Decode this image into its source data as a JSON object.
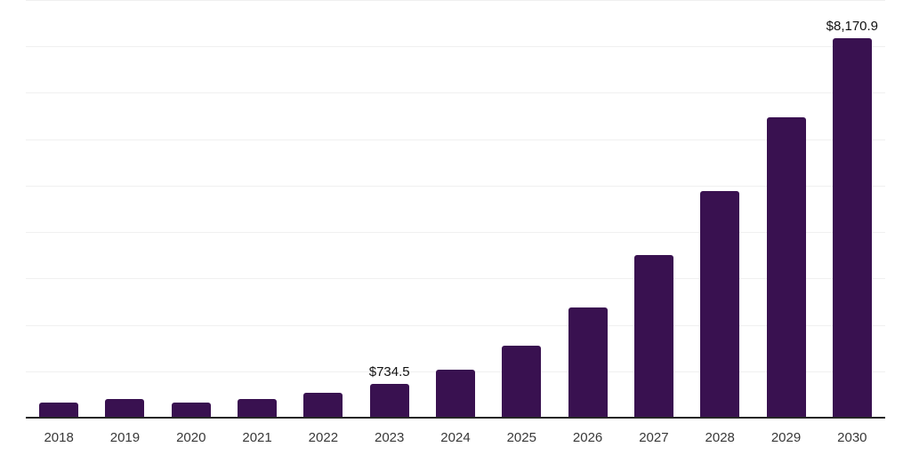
{
  "chart_data": {
    "type": "bar",
    "title": "",
    "xlabel": "",
    "ylabel": "",
    "categories": [
      "2018",
      "2019",
      "2020",
      "2021",
      "2022",
      "2023",
      "2024",
      "2025",
      "2026",
      "2027",
      "2028",
      "2029",
      "2030"
    ],
    "values": [
      330,
      405,
      320,
      395,
      530,
      734.5,
      1030,
      1545,
      2375,
      3510,
      4885,
      6470,
      8170.9
    ],
    "data_labels": [
      {
        "index": 5,
        "text": "$734.5"
      },
      {
        "index": 12,
        "text": "$8,170.9"
      }
    ],
    "ylim": [
      0,
      9000
    ],
    "gridline_step": 1000,
    "grid": "horizontal",
    "legend": "none",
    "colors": {
      "bar": "#391150",
      "axis_line": "#262626",
      "gridline": "#f0f0f0",
      "tick_label": "#383838",
      "data_label": "#111111",
      "background": "#ffffff"
    }
  }
}
